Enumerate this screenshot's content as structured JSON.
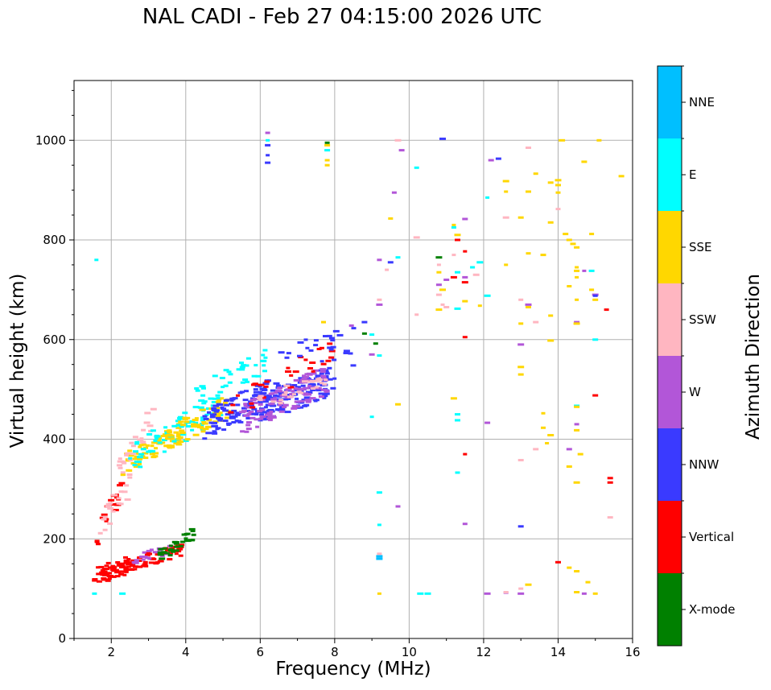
{
  "chart_data": {
    "type": "scatter",
    "title": "NAL CADI - Feb 27 04:15:00 2026 UTC",
    "xlabel": "Frequency (MHz)",
    "ylabel": "Virtual height (km)",
    "xlim": [
      1,
      16
    ],
    "ylim": [
      0,
      1120
    ],
    "xticks": [
      2,
      4,
      6,
      8,
      10,
      12,
      14,
      16
    ],
    "yticks": [
      0,
      200,
      400,
      600,
      800,
      1000
    ],
    "grid": true,
    "colorbar": {
      "label": "Azimuth Direction",
      "categories": [
        "X-mode",
        "Vertical",
        "NNW",
        "W",
        "SSW",
        "SSE",
        "E",
        "NNE"
      ],
      "colors": [
        "#008000",
        "#ff0000",
        "#3a3aff",
        "#b256d8",
        "#ffb6c1",
        "#ffd700",
        "#00ffff",
        "#00bfff"
      ]
    },
    "traces": [
      {
        "category": "Vertical",
        "f_start": 1.55,
        "f_end": 2.6,
        "h_start": 125,
        "h_end": 150,
        "spread": 18,
        "n": 70
      },
      {
        "category": "Vertical",
        "f_start": 2.6,
        "f_end": 3.9,
        "h_start": 150,
        "h_end": 180,
        "spread": 14,
        "n": 45
      },
      {
        "category": "W",
        "f_start": 2.6,
        "f_end": 3.6,
        "h_start": 160,
        "h_end": 180,
        "spread": 10,
        "n": 18
      },
      {
        "category": "X-mode",
        "f_start": 3.3,
        "f_end": 4.25,
        "h_start": 165,
        "h_end": 210,
        "spread": 14,
        "n": 30
      },
      {
        "category": "Vertical",
        "f_start": 1.6,
        "f_end": 2.3,
        "h_start": 200,
        "h_end": 310,
        "spread": 25,
        "n": 22
      },
      {
        "category": "SSW",
        "f_start": 1.7,
        "f_end": 2.5,
        "h_start": 220,
        "h_end": 310,
        "spread": 25,
        "n": 20
      },
      {
        "category": "SSE",
        "f_start": 2.3,
        "f_end": 4.0,
        "h_start": 350,
        "h_end": 420,
        "spread": 22,
        "n": 65
      },
      {
        "category": "SSW",
        "f_start": 2.2,
        "f_end": 3.2,
        "h_start": 340,
        "h_end": 450,
        "spread": 30,
        "n": 25
      },
      {
        "category": "E",
        "f_start": 2.5,
        "f_end": 5.0,
        "h_start": 360,
        "h_end": 470,
        "spread": 30,
        "n": 70
      },
      {
        "category": "SSE",
        "f_start": 3.5,
        "f_end": 5.2,
        "h_start": 400,
        "h_end": 470,
        "spread": 25,
        "n": 60
      },
      {
        "category": "NNW",
        "f_start": 4.5,
        "f_end": 6.5,
        "h_start": 430,
        "h_end": 500,
        "spread": 30,
        "n": 110
      },
      {
        "category": "E",
        "f_start": 4.2,
        "f_end": 6.2,
        "h_start": 480,
        "h_end": 560,
        "spread": 25,
        "n": 40
      },
      {
        "category": "NNW",
        "f_start": 6.0,
        "f_end": 8.0,
        "h_start": 460,
        "h_end": 520,
        "spread": 30,
        "n": 120
      },
      {
        "category": "W",
        "f_start": 5.5,
        "f_end": 7.8,
        "h_start": 440,
        "h_end": 520,
        "spread": 30,
        "n": 110
      },
      {
        "category": "Vertical",
        "f_start": 5.0,
        "f_end": 8.0,
        "h_start": 450,
        "h_end": 580,
        "spread": 25,
        "n": 30
      },
      {
        "category": "SSW",
        "f_start": 5.8,
        "f_end": 7.8,
        "h_start": 470,
        "h_end": 510,
        "spread": 20,
        "n": 25
      },
      {
        "category": "NNW",
        "f_start": 6.5,
        "f_end": 8.6,
        "h_start": 560,
        "h_end": 600,
        "spread": 30,
        "n": 25
      }
    ],
    "points": [
      [
        "E",
        1.6,
        760
      ],
      [
        "E",
        1.55,
        90
      ],
      [
        "E",
        2.3,
        90
      ],
      [
        "NNW",
        6.2,
        990
      ],
      [
        "NNW",
        6.2,
        970
      ],
      [
        "NNW",
        6.2,
        955
      ],
      [
        "E",
        6.2,
        1000
      ],
      [
        "W",
        6.2,
        1015
      ],
      [
        "SSE",
        7.8,
        990
      ],
      [
        "E",
        7.8,
        980
      ],
      [
        "SSE",
        7.8,
        960
      ],
      [
        "SSE",
        7.8,
        950
      ],
      [
        "X-mode",
        7.8,
        995
      ],
      [
        "SSE",
        7.7,
        635
      ],
      [
        "NNW",
        8.5,
        548
      ],
      [
        "W",
        8.45,
        628
      ],
      [
        "NNW",
        8.8,
        635
      ],
      [
        "X-mode",
        8.8,
        612
      ],
      [
        "E",
        9.0,
        610
      ],
      [
        "X-mode",
        9.1,
        592
      ],
      [
        "W",
        9.0,
        570
      ],
      [
        "E",
        9.2,
        568
      ],
      [
        "W",
        9.2,
        760
      ],
      [
        "SSE",
        9.5,
        843
      ],
      [
        "NNW",
        9.5,
        755
      ],
      [
        "SSW",
        9.4,
        740
      ],
      [
        "W",
        9.6,
        895
      ],
      [
        "E",
        9.7,
        765
      ],
      [
        "SSW",
        9.7,
        1000
      ],
      [
        "W",
        9.8,
        980
      ],
      [
        "E",
        10.2,
        945
      ],
      [
        "SSW",
        10.2,
        805
      ],
      [
        "SSW",
        10.2,
        650
      ],
      [
        "W",
        9.2,
        670
      ],
      [
        "SSW",
        9.2,
        680
      ],
      [
        "E",
        9.0,
        445
      ],
      [
        "SSE",
        9.7,
        470
      ],
      [
        "E",
        9.2,
        293
      ],
      [
        "W",
        9.7,
        265
      ],
      [
        "E",
        9.2,
        228
      ],
      [
        "NNE",
        9.2,
        165
      ],
      [
        "NNE",
        9.2,
        160
      ],
      [
        "SSW",
        9.2,
        170
      ],
      [
        "SSE",
        9.2,
        90
      ],
      [
        "E",
        10.5,
        90
      ],
      [
        "E",
        10.3,
        90
      ],
      [
        "NNW",
        10.9,
        1003
      ],
      [
        "X-mode",
        10.8,
        765
      ],
      [
        "SSW",
        10.8,
        750
      ],
      [
        "SSE",
        10.8,
        735
      ],
      [
        "W",
        10.8,
        710
      ],
      [
        "SSW",
        10.8,
        690
      ],
      [
        "SSE",
        10.8,
        660
      ],
      [
        "SSW",
        10.9,
        670
      ],
      [
        "SSW",
        11.0,
        665
      ],
      [
        "SSE",
        10.9,
        700
      ],
      [
        "W",
        11.0,
        720
      ],
      [
        "Vertical",
        11.2,
        725
      ],
      [
        "SSE",
        11.3,
        810
      ],
      [
        "SSE",
        11.2,
        830
      ],
      [
        "E",
        11.2,
        825
      ],
      [
        "Vertical",
        11.3,
        800
      ],
      [
        "SSW",
        11.2,
        770
      ],
      [
        "W",
        11.5,
        842
      ],
      [
        "Vertical",
        11.5,
        777
      ],
      [
        "E",
        11.7,
        745
      ],
      [
        "SSW",
        11.8,
        730
      ],
      [
        "E",
        11.3,
        735
      ],
      [
        "W",
        11.5,
        725
      ],
      [
        "Vertical",
        11.5,
        715
      ],
      [
        "E",
        11.3,
        662
      ],
      [
        "SSE",
        11.5,
        677
      ],
      [
        "Vertical",
        11.5,
        605
      ],
      [
        "SSE",
        11.2,
        482
      ],
      [
        "E",
        11.3,
        450
      ],
      [
        "E",
        11.3,
        438
      ],
      [
        "E",
        11.3,
        333
      ],
      [
        "Vertical",
        11.5,
        370
      ],
      [
        "W",
        11.5,
        230
      ],
      [
        "E",
        11.9,
        755
      ],
      [
        "SSE",
        11.9,
        668
      ],
      [
        "E",
        12.1,
        885
      ],
      [
        "E",
        12.1,
        688
      ],
      [
        "W",
        12.2,
        960
      ],
      [
        "NNW",
        12.4,
        963
      ],
      [
        "SSE",
        12.6,
        918
      ],
      [
        "SSE",
        12.6,
        897
      ],
      [
        "SSW",
        12.6,
        845
      ],
      [
        "SSE",
        12.6,
        750
      ],
      [
        "W",
        12.1,
        433
      ],
      [
        "W",
        12.1,
        90
      ],
      [
        "W",
        12.6,
        92
      ],
      [
        "SSW",
        12.6,
        93
      ],
      [
        "SSE",
        13.0,
        845
      ],
      [
        "SSW",
        13.0,
        680
      ],
      [
        "SSE",
        13.0,
        632
      ],
      [
        "W",
        13.0,
        590
      ],
      [
        "SSE",
        13.0,
        545
      ],
      [
        "SSE",
        13.0,
        530
      ],
      [
        "SSW",
        13.0,
        358
      ],
      [
        "NNW",
        13.0,
        225
      ],
      [
        "SSW",
        13.0,
        100
      ],
      [
        "W",
        13.0,
        90
      ],
      [
        "SSW",
        13.2,
        985
      ],
      [
        "SSE",
        13.2,
        897
      ],
      [
        "SSE",
        13.2,
        773
      ],
      [
        "W",
        13.2,
        670
      ],
      [
        "SSE",
        13.2,
        665
      ],
      [
        "SSE",
        13.2,
        108
      ],
      [
        "SSE",
        13.4,
        933
      ],
      [
        "SSW",
        13.4,
        635
      ],
      [
        "SSW",
        13.4,
        380
      ],
      [
        "SSE",
        13.6,
        770
      ],
      [
        "SSE",
        13.6,
        452
      ],
      [
        "SSE",
        13.6,
        423
      ],
      [
        "SSE",
        13.8,
        915
      ],
      [
        "SSE",
        13.8,
        835
      ],
      [
        "SSE",
        13.8,
        648
      ],
      [
        "SSE",
        13.8,
        598
      ],
      [
        "SSE",
        13.8,
        408
      ],
      [
        "SSE",
        13.7,
        392
      ],
      [
        "SSE",
        14.0,
        920
      ],
      [
        "SSE",
        14.0,
        910
      ],
      [
        "SSE",
        14.0,
        895
      ],
      [
        "SSW",
        14.0,
        862
      ],
      [
        "SSE",
        14.1,
        1000
      ],
      [
        "SSE",
        14.2,
        812
      ],
      [
        "SSE",
        14.3,
        800
      ],
      [
        "SSE",
        14.4,
        792
      ],
      [
        "SSE",
        14.5,
        785
      ],
      [
        "SSE",
        14.5,
        745
      ],
      [
        "SSE",
        14.5,
        738
      ],
      [
        "SSE",
        14.5,
        725
      ],
      [
        "SSE",
        14.3,
        707
      ],
      [
        "SSE",
        14.5,
        680
      ],
      [
        "W",
        14.5,
        635
      ],
      [
        "SSE",
        14.5,
        632
      ],
      [
        "E",
        14.5,
        467
      ],
      [
        "SSE",
        14.5,
        465
      ],
      [
        "W",
        14.5,
        430
      ],
      [
        "SSE",
        14.5,
        418
      ],
      [
        "W",
        14.3,
        380
      ],
      [
        "SSE",
        14.6,
        370
      ],
      [
        "SSE",
        14.3,
        345
      ],
      [
        "SSE",
        14.5,
        313
      ],
      [
        "Vertical",
        14.0,
        153
      ],
      [
        "SSE",
        14.3,
        142
      ],
      [
        "SSE",
        14.5,
        135
      ],
      [
        "SSE",
        14.5,
        93
      ],
      [
        "SSE",
        14.7,
        957
      ],
      [
        "SSE",
        14.9,
        812
      ],
      [
        "W",
        14.7,
        738
      ],
      [
        "E",
        14.9,
        738
      ],
      [
        "SSE",
        14.9,
        700
      ],
      [
        "W",
        15.0,
        690
      ],
      [
        "NNW",
        15.0,
        688
      ],
      [
        "SSE",
        15.0,
        680
      ],
      [
        "E",
        15.0,
        600
      ],
      [
        "Vertical",
        15.0,
        488
      ],
      [
        "W",
        14.7,
        90
      ],
      [
        "SSE",
        14.8,
        113
      ],
      [
        "SSE",
        15.0,
        90
      ],
      [
        "SSE",
        15.1,
        1000
      ],
      [
        "Vertical",
        15.3,
        660
      ],
      [
        "Vertical",
        15.4,
        322
      ],
      [
        "Vertical",
        15.4,
        313
      ],
      [
        "SSW",
        15.4,
        243
      ],
      [
        "SSE",
        15.7,
        928
      ]
    ]
  }
}
